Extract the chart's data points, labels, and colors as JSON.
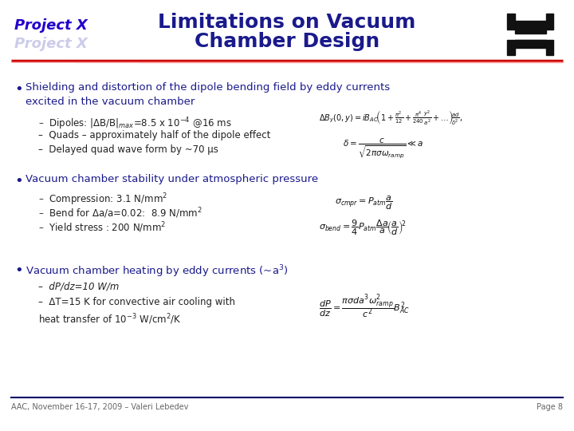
{
  "title_line1": "Limitations on Vacuum",
  "title_line2": "Chamber Design",
  "title_color": "#1a1a8c",
  "title_fontsize": 18,
  "background_color": "#ffffff",
  "header_line_color": "#cc0000",
  "footer_line_color": "#000066",
  "project_x_color": "#2200cc",
  "bullet_color": "#1a1a8c",
  "sub_bullet_color": "#222222",
  "footer_text": "AAC, November 16-17, 2009 – Valeri Lebedev",
  "page_text": "Page 8",
  "bullet1_main": "Shielding and distortion of the dipole bending field by eddy currents\nexcited in the vacuum chamber",
  "bullet1_sub1": "Dipoles: |ΔB/B|$_{max}$=8.5 x 10$^{-4}$ @16 ms",
  "bullet1_sub2": "Quads – approximately half of the dipole effect",
  "bullet1_sub3": "Delayed quad wave form by ~70 μs",
  "bullet2_main": "Vacuum chamber stability under atmospheric pressure",
  "bullet2_sub1": "Compression: 3.1 N/mm$^{2}$",
  "bullet2_sub2": "Bend for Δa/a=0.02:  8.9 N/mm$^{2}$",
  "bullet2_sub3": "Yield stress : 200 N/mm$^{2}$",
  "bullet3_main": "Vacuum chamber heating by eddy currents (~a$^{3}$)",
  "bullet3_sub1": "dP/dz=10 W/m",
  "bullet3_sub2": "ΔT=15 K for convective air cooling with\nheat transfer of 10$^{-3}$ W/cm$^{2}$/K",
  "main_bullet_fontsize": 9.5,
  "sub_bullet_fontsize": 8.5,
  "footer_fontsize": 7
}
